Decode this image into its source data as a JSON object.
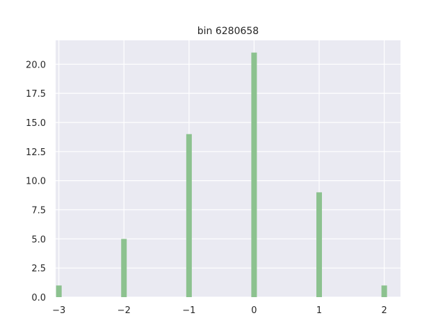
{
  "chart_data": {
    "type": "bar",
    "title": "bin 6280658",
    "xlabel": "",
    "ylabel": "",
    "x": [
      -3,
      -2,
      -1,
      0,
      1,
      2
    ],
    "values": [
      1,
      5,
      14,
      21,
      9,
      1
    ],
    "xlim": [
      -3.05,
      2.25
    ],
    "ylim": [
      0,
      22.05
    ],
    "xticks": [
      -3,
      -2,
      -1,
      0,
      1,
      2
    ],
    "xtick_labels": [
      "−3",
      "−2",
      "−1",
      "0",
      "1",
      "2"
    ],
    "yticks": [
      0,
      2.5,
      5,
      7.5,
      10,
      12.5,
      15,
      17.5,
      20
    ],
    "ytick_labels": [
      "0.0",
      "2.5",
      "5.0",
      "7.5",
      "10.0",
      "12.5",
      "15.0",
      "17.5",
      "20.0"
    ],
    "grid": true,
    "legend": "none",
    "colors": {
      "bar": "#8cc28f",
      "background": "#eaeaf2",
      "grid": "#ffffff",
      "text": "#262626"
    }
  }
}
